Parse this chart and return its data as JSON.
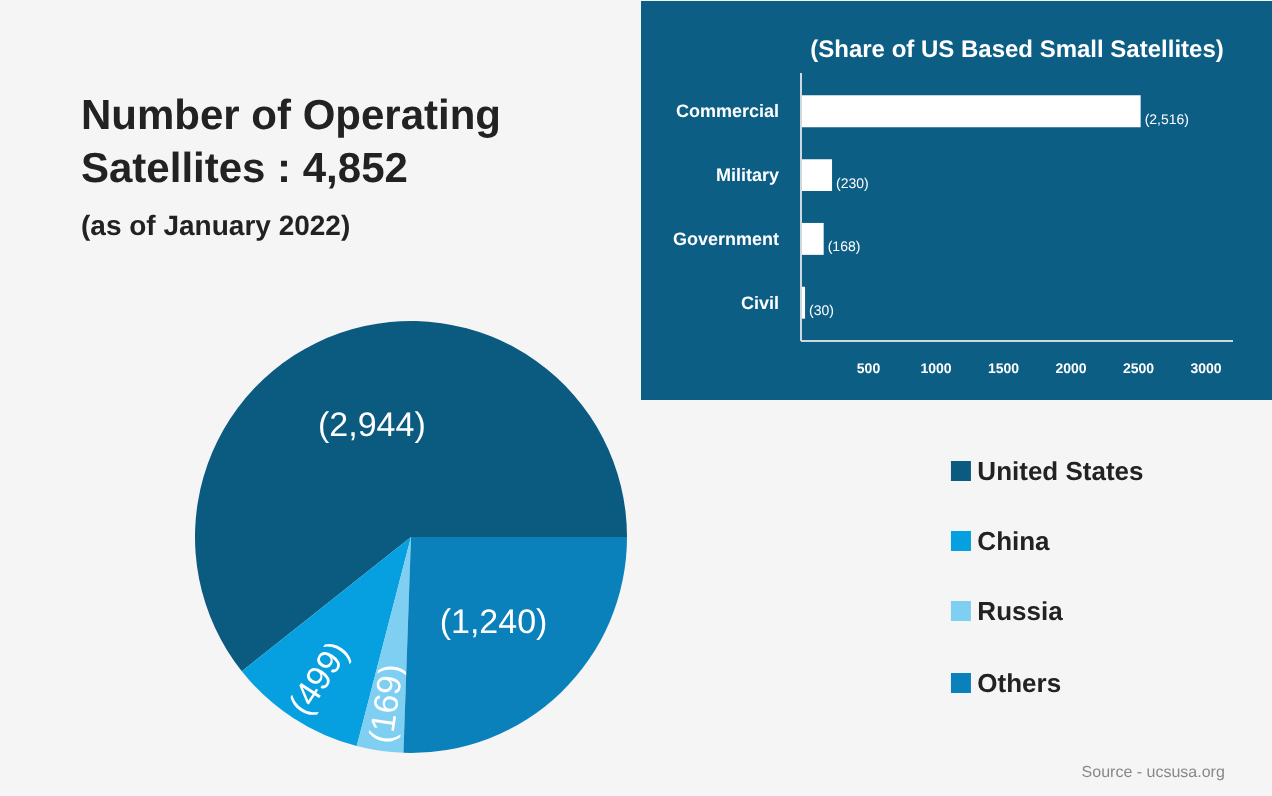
{
  "chart_data": [
    {
      "type": "pie",
      "title": "Number of Operating Satellites : 4,852",
      "subtitle": "(as of January 2022)",
      "categories": [
        "United States",
        "China",
        "Russia",
        "Others"
      ],
      "values": [
        2944,
        499,
        169,
        1240
      ],
      "colors": [
        "#0b5a80",
        "#06a0e0",
        "#7fcff2",
        "#0a81bb"
      ],
      "value_labels": [
        "(2,944)",
        "(499)",
        "(169)",
        "(1,240)"
      ],
      "legend": "right",
      "annotations": [
        "Source - ucsusa.org"
      ]
    },
    {
      "type": "bar",
      "orientation": "horizontal",
      "title": "(Share of US Based Small Satellites)",
      "categories": [
        "Commercial",
        "Military",
        "Government",
        "Civil"
      ],
      "values": [
        2516,
        230,
        168,
        30
      ],
      "color": "#ffffff",
      "value_labels": [
        "(2,516)",
        "(230)",
        "(168)",
        "(30)"
      ],
      "xlim": [
        0,
        3200
      ],
      "xticks": [
        500,
        1000,
        1500,
        2000,
        2500,
        3000
      ]
    }
  ]
}
